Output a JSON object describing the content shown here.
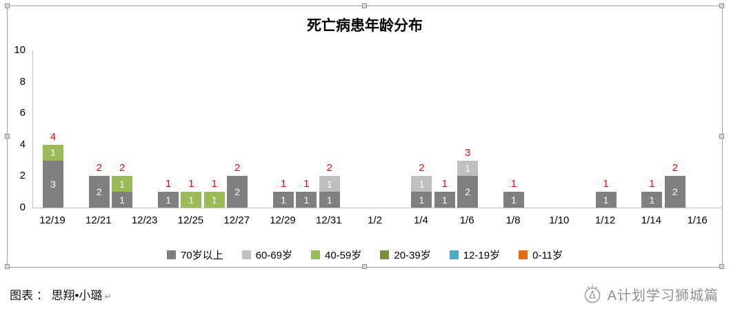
{
  "footer": {
    "caption": "图表 ： 思翔•小璐",
    "caption_mark": "↵",
    "brand": "A计划学习狮城篇"
  },
  "chart_data": {
    "type": "bar",
    "stacked": true,
    "title": "死亡病患年龄分布",
    "xlabel": "",
    "ylabel": "",
    "ylim": [
      0,
      10
    ],
    "yticks": [
      0,
      2,
      4,
      6,
      8,
      10
    ],
    "grid": false,
    "legend_position": "bottom",
    "x_tick_labels": [
      "12/19",
      "12/21",
      "12/23",
      "12/25",
      "12/27",
      "12/29",
      "12/31",
      "1/2",
      "1/4",
      "1/6",
      "1/8",
      "1/10",
      "1/12",
      "1/14",
      "1/16"
    ],
    "x_days_span": 29,
    "total_label_color": "#ff0000",
    "series_colors": {
      "70岁以上": "#7f7f7f",
      "60-69岁": "#bfbfbf",
      "40-59岁": "#9bbb59",
      "20-39岁": "#77933c",
      "12-19岁": "#4bacc6",
      "0-11岁": "#e46c0a"
    },
    "legend": [
      {
        "label": "70岁以上",
        "color": "#7f7f7f"
      },
      {
        "label": "60-69岁",
        "color": "#bfbfbf"
      },
      {
        "label": "40-59岁",
        "color": "#9bbb59"
      },
      {
        "label": "20-39岁",
        "color": "#77933c"
      },
      {
        "label": "12-19岁",
        "color": "#4bacc6"
      },
      {
        "label": "0-11岁",
        "color": "#e46c0a"
      }
    ],
    "bars": [
      {
        "date": "12/19",
        "day": 0,
        "total_label": "4",
        "segments": [
          {
            "series": "70岁以上",
            "value": 3
          },
          {
            "series": "40-59岁",
            "value": 1
          }
        ]
      },
      {
        "date": "12/21",
        "day": 2,
        "total_label": "2",
        "segments": [
          {
            "series": "70岁以上",
            "value": 2
          }
        ]
      },
      {
        "date": "12/22",
        "day": 3,
        "total_label": "2",
        "segments": [
          {
            "series": "70岁以上",
            "value": 1
          },
          {
            "series": "40-59岁",
            "value": 1
          }
        ]
      },
      {
        "date": "12/24",
        "day": 5,
        "total_label": "1",
        "segments": [
          {
            "series": "70岁以上",
            "value": 1
          }
        ]
      },
      {
        "date": "12/25",
        "day": 6,
        "total_label": "1",
        "segments": [
          {
            "series": "40-59岁",
            "value": 1
          }
        ]
      },
      {
        "date": "12/26",
        "day": 7,
        "total_label": "1",
        "segments": [
          {
            "series": "40-59岁",
            "value": 1
          }
        ]
      },
      {
        "date": "12/27",
        "day": 8,
        "total_label": "2",
        "segments": [
          {
            "series": "70岁以上",
            "value": 2
          }
        ]
      },
      {
        "date": "12/29",
        "day": 10,
        "total_label": "1",
        "segments": [
          {
            "series": "70岁以上",
            "value": 1
          }
        ]
      },
      {
        "date": "12/30",
        "day": 11,
        "total_label": "1",
        "segments": [
          {
            "series": "70岁以上",
            "value": 1
          }
        ]
      },
      {
        "date": "12/31",
        "day": 12,
        "total_label": "2",
        "segments": [
          {
            "series": "70岁以上",
            "value": 1
          },
          {
            "series": "60-69岁",
            "value": 1
          }
        ]
      },
      {
        "date": "1/4",
        "day": 16,
        "total_label": "2",
        "segments": [
          {
            "series": "70岁以上",
            "value": 1
          },
          {
            "series": "60-69岁",
            "value": 1
          }
        ]
      },
      {
        "date": "1/5",
        "day": 17,
        "total_label": "1",
        "segments": [
          {
            "series": "70岁以上",
            "value": 1
          }
        ]
      },
      {
        "date": "1/6",
        "day": 18,
        "total_label": "3",
        "segments": [
          {
            "series": "70岁以上",
            "value": 2
          },
          {
            "series": "60-69岁",
            "value": 1
          }
        ]
      },
      {
        "date": "1/8",
        "day": 20,
        "total_label": "1",
        "segments": [
          {
            "series": "70岁以上",
            "value": 1
          }
        ]
      },
      {
        "date": "1/12",
        "day": 24,
        "total_label": "1",
        "segments": [
          {
            "series": "70岁以上",
            "value": 1
          }
        ]
      },
      {
        "date": "1/14",
        "day": 26,
        "total_label": "1",
        "segments": [
          {
            "series": "70岁以上",
            "value": 1
          }
        ]
      },
      {
        "date": "1/15",
        "day": 27,
        "total_label": "2",
        "segments": [
          {
            "series": "70岁以上",
            "value": 2
          }
        ]
      }
    ]
  }
}
